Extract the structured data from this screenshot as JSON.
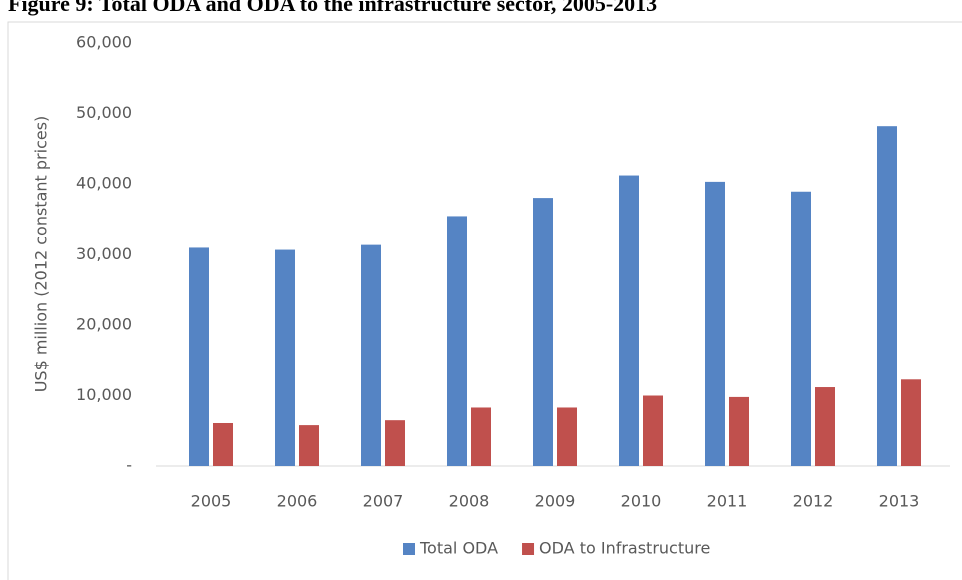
{
  "chart_data": {
    "type": "bar",
    "title": "Figure 9: Total ODA and ODA to the infrastructure sector, 2005-2013",
    "y_label": "US$ million (2012 constant prices)",
    "categories": [
      "2005",
      "2006",
      "2007",
      "2008",
      "2009",
      "2010",
      "2011",
      "2012",
      "2013"
    ],
    "series": [
      {
        "name": "Total ODA",
        "color": "#5584c4",
        "values": [
          31000,
          30700,
          31400,
          35400,
          38000,
          41200,
          40300,
          38900,
          48200
        ]
      },
      {
        "name": "ODA to Infrastructure",
        "color": "#c0504d",
        "values": [
          6100,
          5800,
          6500,
          8300,
          8300,
          10000,
          9800,
          11200,
          12300
        ]
      }
    ],
    "ylim": [
      0,
      60000
    ],
    "yticks": [
      {
        "value": 0,
        "label": "-"
      },
      {
        "value": 10000,
        "label": "10,000"
      },
      {
        "value": 20000,
        "label": "20,000"
      },
      {
        "value": 30000,
        "label": "30,000"
      },
      {
        "value": 40000,
        "label": "40,000"
      },
      {
        "value": 50000,
        "label": "50,000"
      },
      {
        "value": 60000,
        "label": "60,000"
      }
    ],
    "grid": false,
    "legend": "bottom"
  }
}
